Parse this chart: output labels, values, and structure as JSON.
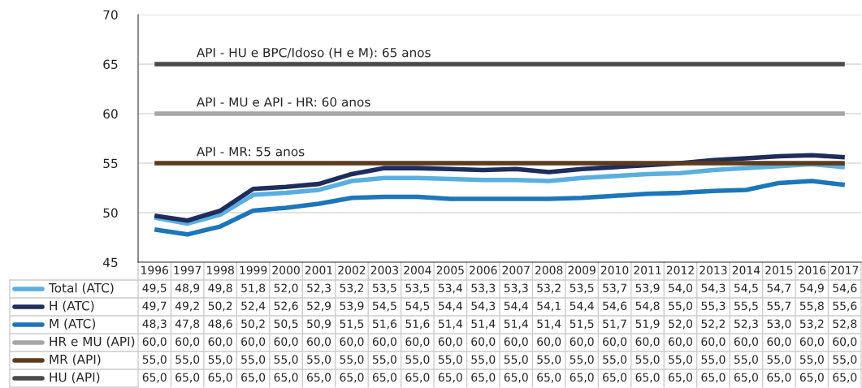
{
  "chart_data": {
    "type": "line",
    "categories": [
      "1996",
      "1997",
      "1998",
      "1999",
      "2000",
      "2001",
      "2002",
      "2003",
      "2004",
      "2005",
      "2006",
      "2007",
      "2008",
      "2009",
      "2010",
      "2011",
      "2012",
      "2013",
      "2014",
      "2015",
      "2016",
      "2017"
    ],
    "series": [
      {
        "name": "Total (ATC)",
        "color": "#5aafe0",
        "values": [
          49.5,
          48.9,
          49.8,
          51.8,
          52.0,
          52.3,
          53.2,
          53.5,
          53.5,
          53.4,
          53.3,
          53.3,
          53.2,
          53.5,
          53.7,
          53.9,
          54.0,
          54.3,
          54.5,
          54.7,
          54.9,
          54.6
        ],
        "value_labels": [
          "49,5",
          "48,9",
          "49,8",
          "51,8",
          "52,0",
          "52,3",
          "53,2",
          "53,5",
          "53,5",
          "53,4",
          "53,3",
          "53,3",
          "53,2",
          "53,5",
          "53,7",
          "53,9",
          "54,0",
          "54,3",
          "54,5",
          "54,7",
          "54,9",
          "54,6"
        ]
      },
      {
        "name": "H (ATC)",
        "color": "#1f2d5c",
        "values": [
          49.7,
          49.2,
          50.2,
          52.4,
          52.6,
          52.9,
          53.9,
          54.5,
          54.5,
          54.4,
          54.3,
          54.4,
          54.1,
          54.4,
          54.6,
          54.8,
          55.0,
          55.3,
          55.5,
          55.7,
          55.8,
          55.6
        ],
        "value_labels": [
          "49,7",
          "49,2",
          "50,2",
          "52,4",
          "52,6",
          "52,9",
          "53,9",
          "54,5",
          "54,5",
          "54,4",
          "54,3",
          "54,4",
          "54,1",
          "54,4",
          "54,6",
          "54,8",
          "55,0",
          "55,3",
          "55,5",
          "55,7",
          "55,8",
          "55,6"
        ]
      },
      {
        "name": "M (ATC)",
        "color": "#1b76bc",
        "values": [
          48.3,
          47.8,
          48.6,
          50.2,
          50.5,
          50.9,
          51.5,
          51.6,
          51.6,
          51.4,
          51.4,
          51.4,
          51.4,
          51.5,
          51.7,
          51.9,
          52.0,
          52.2,
          52.3,
          53.0,
          53.2,
          52.8
        ],
        "value_labels": [
          "48,3",
          "47,8",
          "48,6",
          "50,2",
          "50,5",
          "50,9",
          "51,5",
          "51,6",
          "51,6",
          "51,4",
          "51,4",
          "51,4",
          "51,4",
          "51,5",
          "51,7",
          "51,9",
          "52,0",
          "52,2",
          "52,3",
          "53,0",
          "53,2",
          "52,8"
        ]
      },
      {
        "name": "HR e MU (API)",
        "color": "#a6a6a6",
        "values": [
          60.0,
          60.0,
          60.0,
          60.0,
          60.0,
          60.0,
          60.0,
          60.0,
          60.0,
          60.0,
          60.0,
          60.0,
          60.0,
          60.0,
          60.0,
          60.0,
          60.0,
          60.0,
          60.0,
          60.0,
          60.0,
          60.0
        ],
        "value_labels": [
          "60,0",
          "60,0",
          "60,0",
          "60,0",
          "60,0",
          "60,0",
          "60,0",
          "60,0",
          "60,0",
          "60,0",
          "60,0",
          "60,0",
          "60,0",
          "60,0",
          "60,0",
          "60,0",
          "60,0",
          "60,0",
          "60,0",
          "60,0",
          "60,0",
          "60,0"
        ]
      },
      {
        "name": "MR (API)",
        "color": "#5c3b1e",
        "values": [
          55.0,
          55.0,
          55.0,
          55.0,
          55.0,
          55.0,
          55.0,
          55.0,
          55.0,
          55.0,
          55.0,
          55.0,
          55.0,
          55.0,
          55.0,
          55.0,
          55.0,
          55.0,
          55.0,
          55.0,
          55.0,
          55.0
        ],
        "value_labels": [
          "55,0",
          "55,0",
          "55,0",
          "55,0",
          "55,0",
          "55,0",
          "55,0",
          "55,0",
          "55,0",
          "55,0",
          "55,0",
          "55,0",
          "55,0",
          "55,0",
          "55,0",
          "55,0",
          "55,0",
          "55,0",
          "55,0",
          "55,0",
          "55,0",
          "55,0"
        ]
      },
      {
        "name": "HU (API)",
        "color": "#4a4a4a",
        "values": [
          65.0,
          65.0,
          65.0,
          65.0,
          65.0,
          65.0,
          65.0,
          65.0,
          65.0,
          65.0,
          65.0,
          65.0,
          65.0,
          65.0,
          65.0,
          65.0,
          65.0,
          65.0,
          65.0,
          65.0,
          65.0,
          65.0
        ],
        "value_labels": [
          "65,0",
          "65,0",
          "65,0",
          "65,0",
          "65,0",
          "65,0",
          "65,0",
          "65,0",
          "65,0",
          "65,0",
          "65,0",
          "65,0",
          "65,0",
          "65,0",
          "65,0",
          "65,0",
          "65,0",
          "65,0",
          "65,0",
          "65,0",
          "65,0",
          "65,0"
        ]
      }
    ],
    "annotations": [
      {
        "text": "API - HU e BPC/Idoso (H e M): 65 anos",
        "x": "1997",
        "y": 65
      },
      {
        "text": "API - MU e API - HR: 60 anos",
        "x": "1997",
        "y": 60
      },
      {
        "text": "API - MR: 55 anos",
        "x": "1997",
        "y": 55
      }
    ],
    "ylim": [
      45,
      70
    ],
    "yticks": [
      45,
      50,
      55,
      60,
      65,
      70
    ],
    "grid": "y",
    "legend": "bottom",
    "marker": "none",
    "line_style": "solid"
  }
}
